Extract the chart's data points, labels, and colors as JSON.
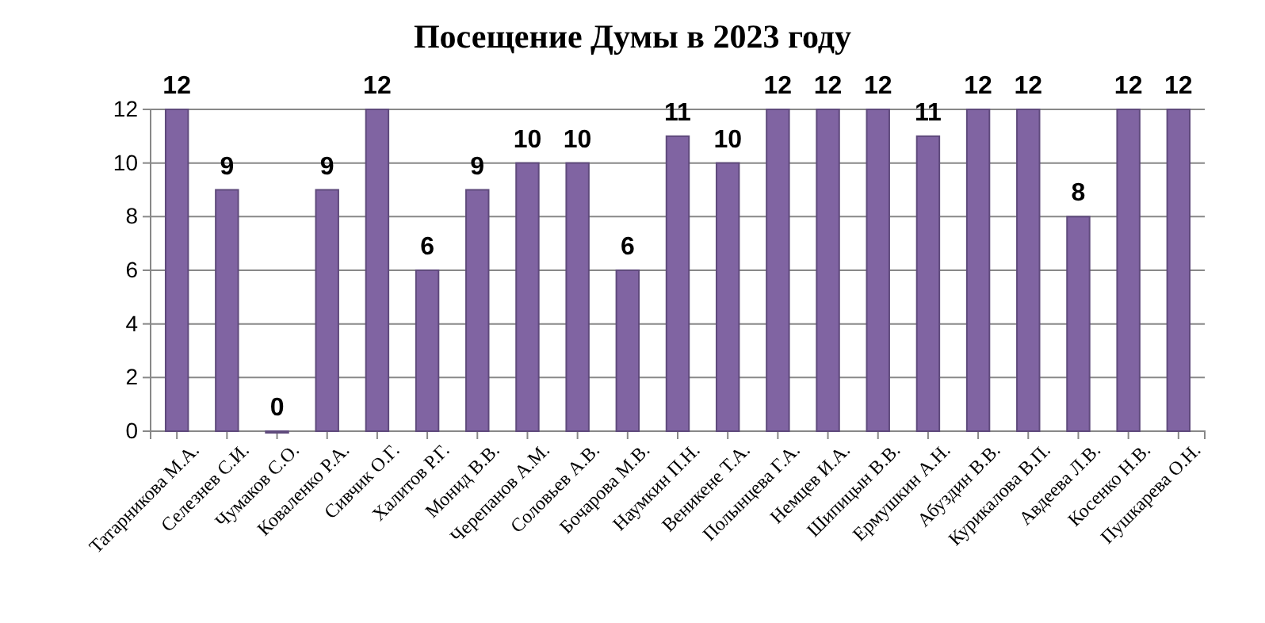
{
  "chart_data": {
    "type": "bar",
    "title": "Посещение Думы в 2023 году",
    "categories": [
      "Татарникова  М.А.",
      "Селезнев С.И.",
      "Чумаков С.О.",
      "Коваленко Р.А.",
      "Сивчик О.Г.",
      "Халитов Р.Г.",
      "Монид В.В.",
      "Черепанов А.М.",
      "Соловьев А.В.",
      "Бочарова М.В.",
      "Наумкин П.Н.",
      "Веникене Т.А.",
      "Полынцева Г.А.",
      "Немцев И.А.",
      "Шипицын В.В.",
      "Ермушкин А.Н.",
      "Абуздин В.В.",
      "Курикалова В.П.",
      "Авдеева Л.В.",
      "Косенко Н.В.",
      "Пушкарева О.Н."
    ],
    "values": [
      12,
      9,
      0,
      9,
      12,
      6,
      9,
      10,
      10,
      6,
      11,
      10,
      12,
      12,
      12,
      11,
      12,
      12,
      8,
      12,
      12
    ],
    "color": "#8064a2",
    "ylim": [
      0,
      12
    ],
    "yticks": [
      0,
      2,
      4,
      6,
      8,
      10,
      12
    ],
    "grid": "y",
    "data_labels": true
  }
}
